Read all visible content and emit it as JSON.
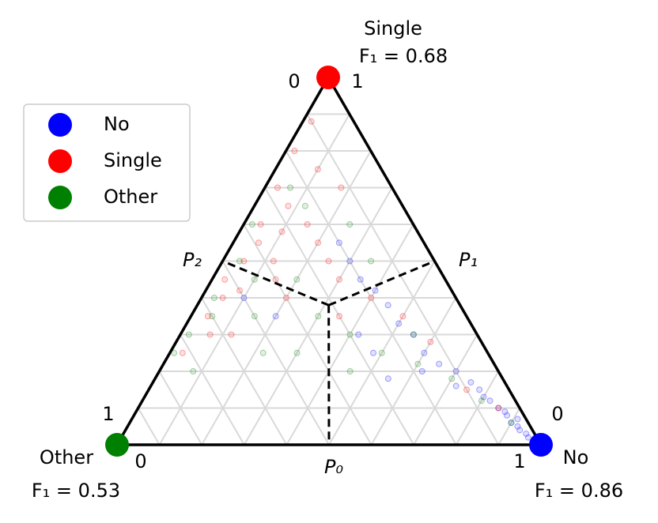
{
  "chart_data": {
    "type": "ternary",
    "axes": [
      {
        "label": "P₀",
        "lim": [
          0,
          1
        ]
      },
      {
        "label": "P₁",
        "lim": [
          0,
          1
        ]
      },
      {
        "label": "P₂",
        "lim": [
          0,
          1
        ]
      }
    ],
    "grid_ticks": [
      0.1,
      0.2,
      0.3,
      0.4,
      0.5,
      0.6,
      0.7,
      0.8,
      0.9
    ],
    "grid": true,
    "legend": "upper left",
    "boundary_point": [
      0.31,
      0.38,
      0.31
    ],
    "series": [
      {
        "name": "No",
        "color": "#0000ff",
        "f1_label": "F₁ = 0.86",
        "points": [
          [
            0.95,
            0.03,
            0.02
          ],
          [
            0.92,
            0.05,
            0.03
          ],
          [
            0.9,
            0.06,
            0.04
          ],
          [
            0.88,
            0.08,
            0.04
          ],
          [
            0.85,
            0.1,
            0.05
          ],
          [
            0.82,
            0.12,
            0.06
          ],
          [
            0.78,
            0.15,
            0.07
          ],
          [
            0.75,
            0.17,
            0.08
          ],
          [
            0.7,
            0.2,
            0.1
          ],
          [
            0.65,
            0.22,
            0.13
          ],
          [
            0.6,
            0.25,
            0.15
          ],
          [
            0.55,
            0.3,
            0.15
          ],
          [
            0.5,
            0.33,
            0.17
          ],
          [
            0.45,
            0.38,
            0.17
          ],
          [
            0.4,
            0.42,
            0.18
          ],
          [
            0.35,
            0.45,
            0.2
          ],
          [
            0.3,
            0.5,
            0.2
          ],
          [
            0.25,
            0.55,
            0.2
          ],
          [
            0.93,
            0.04,
            0.03
          ],
          [
            0.87,
            0.09,
            0.04
          ],
          [
            0.8,
            0.13,
            0.07
          ],
          [
            0.72,
            0.16,
            0.12
          ],
          [
            0.62,
            0.2,
            0.18
          ],
          [
            0.55,
            0.18,
            0.27
          ],
          [
            0.48,
            0.25,
            0.27
          ],
          [
            0.2,
            0.35,
            0.45
          ],
          [
            0.1,
            0.4,
            0.5
          ],
          [
            0.42,
            0.3,
            0.28
          ],
          [
            0.96,
            0.02,
            0.02
          ],
          [
            0.91,
            0.07,
            0.02
          ]
        ]
      },
      {
        "name": "Single",
        "color": "#ff0000",
        "f1_label": "F₁ = 0.68",
        "points": [
          [
            0.02,
            0.8,
            0.18
          ],
          [
            0.03,
            0.7,
            0.27
          ],
          [
            0.04,
            0.6,
            0.36
          ],
          [
            0.05,
            0.5,
            0.45
          ],
          [
            0.03,
            0.45,
            0.52
          ],
          [
            0.06,
            0.55,
            0.39
          ],
          [
            0.08,
            0.65,
            0.27
          ],
          [
            0.1,
            0.58,
            0.32
          ],
          [
            0.12,
            0.5,
            0.38
          ],
          [
            0.05,
            0.4,
            0.55
          ],
          [
            0.04,
            0.35,
            0.61
          ],
          [
            0.07,
            0.3,
            0.63
          ],
          [
            0.15,
            0.6,
            0.25
          ],
          [
            0.2,
            0.55,
            0.25
          ],
          [
            0.25,
            0.5,
            0.25
          ],
          [
            0.3,
            0.45,
            0.25
          ],
          [
            0.4,
            0.4,
            0.2
          ],
          [
            0.5,
            0.35,
            0.15
          ],
          [
            0.6,
            0.28,
            0.12
          ],
          [
            0.75,
            0.15,
            0.1
          ],
          [
            0.85,
            0.1,
            0.05
          ],
          [
            0.1,
            0.75,
            0.15
          ],
          [
            0.15,
            0.45,
            0.4
          ],
          [
            0.2,
            0.4,
            0.4
          ],
          [
            0.02,
            0.88,
            0.1
          ],
          [
            0.08,
            0.42,
            0.5
          ],
          [
            0.35,
            0.35,
            0.3
          ],
          [
            0.03,
            0.25,
            0.72
          ],
          [
            0.12,
            0.3,
            0.58
          ],
          [
            0.18,
            0.7,
            0.12
          ]
        ]
      },
      {
        "name": "Other",
        "color": "#008000",
        "f1_label": "F₁ = 0.53",
        "points": [
          [
            0.02,
            0.3,
            0.68
          ],
          [
            0.01,
            0.25,
            0.74
          ],
          [
            0.03,
            0.4,
            0.57
          ],
          [
            0.04,
            0.5,
            0.46
          ],
          [
            0.02,
            0.6,
            0.38
          ],
          [
            0.05,
            0.35,
            0.6
          ],
          [
            0.1,
            0.45,
            0.45
          ],
          [
            0.15,
            0.35,
            0.5
          ],
          [
            0.2,
            0.45,
            0.35
          ],
          [
            0.3,
            0.35,
            0.35
          ],
          [
            0.4,
            0.3,
            0.3
          ],
          [
            0.5,
            0.25,
            0.25
          ],
          [
            0.6,
            0.22,
            0.18
          ],
          [
            0.7,
            0.18,
            0.12
          ],
          [
            0.8,
            0.12,
            0.08
          ],
          [
            0.9,
            0.06,
            0.04
          ],
          [
            0.25,
            0.6,
            0.15
          ],
          [
            0.35,
            0.5,
            0.15
          ],
          [
            0.08,
            0.2,
            0.72
          ],
          [
            0.12,
            0.65,
            0.23
          ],
          [
            0.45,
            0.2,
            0.35
          ],
          [
            0.22,
            0.25,
            0.53
          ],
          [
            0.06,
            0.7,
            0.24
          ],
          [
            0.55,
            0.3,
            0.15
          ],
          [
            0.3,
            0.25,
            0.45
          ]
        ]
      }
    ]
  }
}
